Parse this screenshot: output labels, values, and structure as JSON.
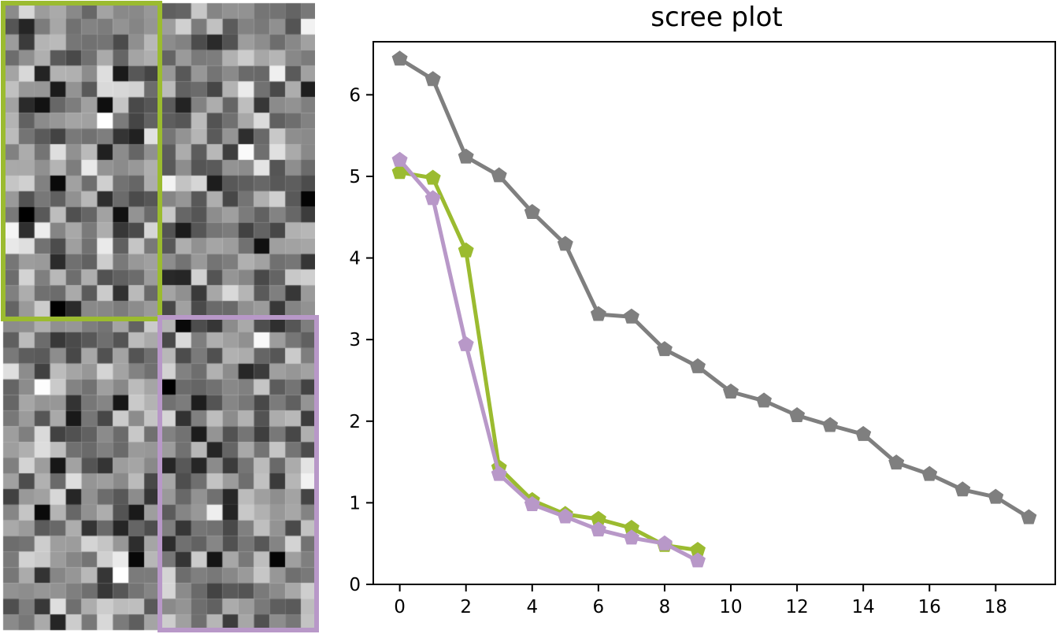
{
  "heatmap": {
    "rows": 40,
    "cols": 20,
    "colormap": "gray",
    "highlight_green_color": "#9bbb30",
    "highlight_purple_color": "#b898c8"
  },
  "chart_data": {
    "type": "line",
    "title": "scree plot",
    "xlabel": "",
    "ylabel": "",
    "xlim": [
      -0.8,
      19.8
    ],
    "ylim": [
      0,
      6.65
    ],
    "xticks": [
      0,
      2,
      4,
      6,
      8,
      10,
      12,
      14,
      16,
      18
    ],
    "yticks": [
      0,
      1,
      2,
      3,
      4,
      5,
      6
    ],
    "grid": false,
    "marker": "pentagon",
    "series": [
      {
        "color": "#7f7f7f",
        "x": [
          0,
          1,
          2,
          3,
          4,
          5,
          6,
          7,
          8,
          9,
          10,
          11,
          12,
          13,
          14,
          15,
          16,
          17,
          18,
          19
        ],
        "values": [
          6.44,
          6.19,
          5.24,
          5.01,
          4.56,
          4.17,
          3.31,
          3.28,
          2.88,
          2.67,
          2.36,
          2.25,
          2.07,
          1.95,
          1.84,
          1.49,
          1.35,
          1.16,
          1.07,
          0.82
        ]
      },
      {
        "color": "#9bbb30",
        "x": [
          0,
          1,
          2,
          3,
          4,
          5,
          6,
          7,
          8,
          9
        ],
        "values": [
          5.05,
          4.98,
          4.09,
          1.43,
          1.03,
          0.86,
          0.8,
          0.69,
          0.48,
          0.42
        ]
      },
      {
        "color": "#b898c8",
        "x": [
          0,
          1,
          2,
          3,
          4,
          5,
          6,
          7,
          8,
          9
        ],
        "values": [
          5.2,
          4.73,
          2.94,
          1.35,
          0.98,
          0.83,
          0.67,
          0.57,
          0.5,
          0.29
        ]
      }
    ]
  }
}
